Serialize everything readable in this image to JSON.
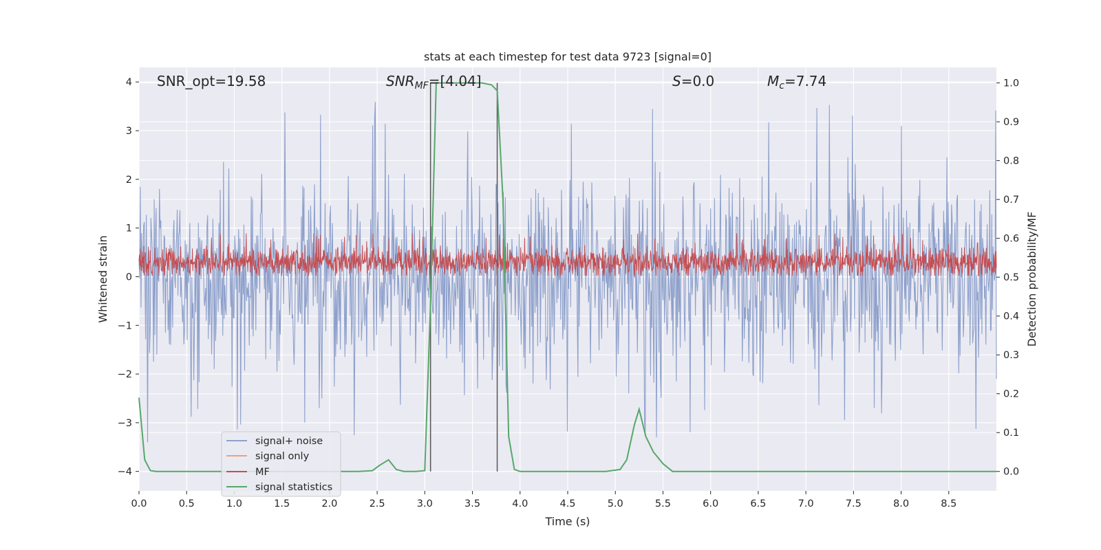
{
  "chart_data": {
    "type": "line",
    "title": "stats at each timestep for test data 9723 [signal=0]",
    "xlabel": "Time (s)",
    "ylabel": "Whitened strain",
    "ylabel_right": "Detection probability/MF",
    "xlim": [
      0,
      9
    ],
    "ylim": [
      -4.4,
      4.3
    ],
    "ylim_right": [
      -0.05,
      1.04
    ],
    "xticks": [
      "0.0",
      "0.5",
      "1.0",
      "1.5",
      "2.0",
      "2.5",
      "3.0",
      "3.5",
      "4.0",
      "4.5",
      "5.0",
      "5.5",
      "6.0",
      "6.5",
      "7.0",
      "7.5",
      "8.0",
      "8.5"
    ],
    "yticks": [
      "4",
      "3",
      "2",
      "1",
      "0",
      "−1",
      "−2",
      "−3",
      "−4"
    ],
    "yticks_right": [
      "1.0",
      "0.9",
      "0.8",
      "0.7",
      "0.6",
      "0.5",
      "0.4",
      "0.3",
      "0.2",
      "0.1",
      "0.0"
    ],
    "grid": true,
    "legend_position": "lower-left",
    "annotations": {
      "snr_opt": "SNR_opt=19.58",
      "snr_mf_main": "SNR",
      "snr_mf_sub": "MF",
      "snr_mf_value": "=[4.04]",
      "s_symbol": "S",
      "s_value": "=0.0",
      "mc_main": "M",
      "mc_sub": "c",
      "mc_value": "=7.74"
    },
    "vlines_x": [
      3.06,
      3.76
    ],
    "series": [
      {
        "name": "signal+ noise",
        "color": "#8da0cb",
        "axis": "left",
        "kind": "noise",
        "range": [
          -2.3,
          2.2
        ],
        "spikes_max": 3.7,
        "spikes_min": -3.4
      },
      {
        "name": "signal only",
        "color": "#e8a27e",
        "axis": "left",
        "values": []
      },
      {
        "name": "MF",
        "color": "#c44e52",
        "axis": "left",
        "kind": "noise",
        "range": [
          0.05,
          0.65
        ],
        "spikes_max": 0.9
      },
      {
        "name": "signal statistics",
        "color": "#55a868",
        "axis": "right",
        "x": [
          0.0,
          0.06,
          0.12,
          0.18,
          0.3,
          1.0,
          1.8,
          2.3,
          2.45,
          2.52,
          2.62,
          2.7,
          2.78,
          2.9,
          3.0,
          3.06,
          3.12,
          3.18,
          3.3,
          3.6,
          3.7,
          3.76,
          3.82,
          3.88,
          3.94,
          4.0,
          4.5,
          4.9,
          5.05,
          5.12,
          5.2,
          5.25,
          5.32,
          5.4,
          5.5,
          5.6,
          6.0,
          7.0,
          8.0,
          9.0
        ],
        "y": [
          0.19,
          0.03,
          0.002,
          0.0,
          0.0,
          0.0,
          0.0,
          0.0,
          0.002,
          0.015,
          0.03,
          0.005,
          0.0,
          0.0,
          0.002,
          0.43,
          1.0,
          1.0,
          1.0,
          1.0,
          0.995,
          0.98,
          0.7,
          0.09,
          0.005,
          0.0,
          0.0,
          0.0,
          0.005,
          0.03,
          0.12,
          0.16,
          0.09,
          0.05,
          0.02,
          0.0,
          0.0,
          0.0,
          0.0,
          0.0
        ]
      }
    ]
  }
}
